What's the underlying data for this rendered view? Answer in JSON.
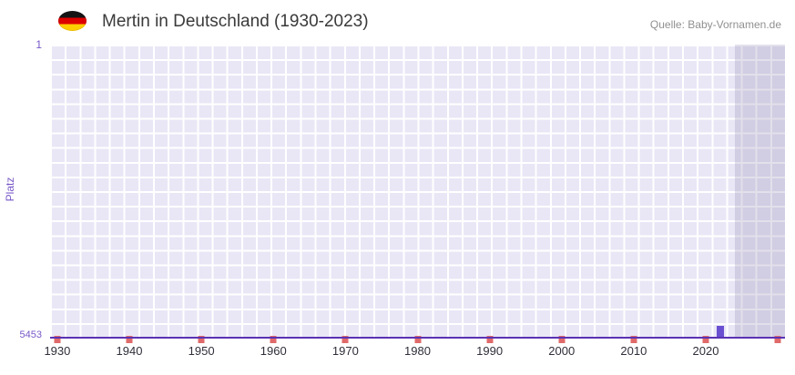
{
  "header": {
    "title": "Mertin in Deutschland (1930-2023)",
    "source": "Quelle: Baby-Vornamen.de",
    "flag_colors": [
      "#141414",
      "#dd0000",
      "#ffce00"
    ]
  },
  "chart_data": {
    "type": "bar",
    "title": "Mertin in Deutschland (1930-2023)",
    "ylabel": "Platz",
    "y_axis": {
      "top": 1,
      "bottom": 5453,
      "inverted": true
    },
    "x_range": [
      1929,
      2031
    ],
    "x_ticks": [
      1930,
      1940,
      1950,
      1960,
      1970,
      1980,
      1990,
      2000,
      2010,
      2020
    ],
    "decade_markers": [
      1930,
      1940,
      1950,
      1960,
      1970,
      1980,
      1990,
      2000,
      2010,
      2020,
      2030
    ],
    "future_band": {
      "from": 2024,
      "to": 2031
    },
    "baseline_rank": 5453,
    "series": [
      {
        "name": "Mertin",
        "points": [
          {
            "x": 2022,
            "y": 5230
          }
        ]
      }
    ],
    "grid": true,
    "legend": false,
    "colors": {
      "plot_bg": "#e9e7f6",
      "grid": "#ffffff",
      "accent": "#5b32b4",
      "bar": "#6a4fd1",
      "marker": "#e06a6a",
      "band": "rgba(122,112,160,0.22)",
      "axis_text": "#7757c8",
      "tick_text": "#2f2f3a"
    }
  }
}
